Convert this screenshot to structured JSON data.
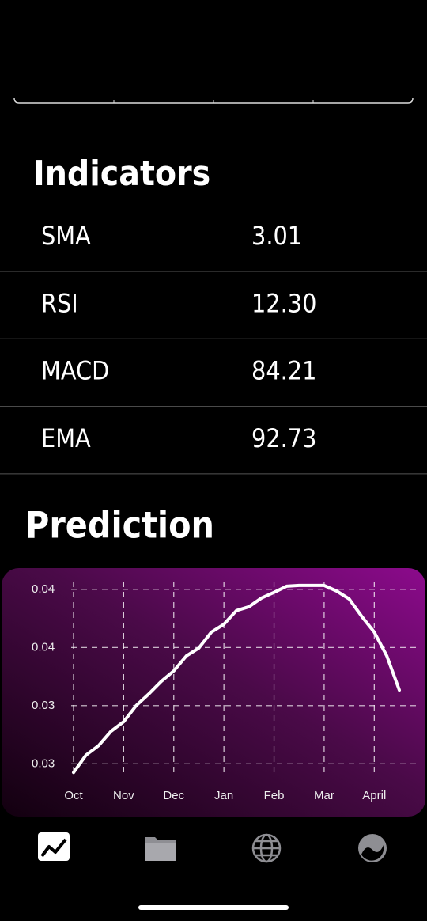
{
  "indicators": {
    "title": "Indicators",
    "rows": [
      {
        "name": "SMA",
        "value": "3.01"
      },
      {
        "name": "RSI",
        "value": "12.30"
      },
      {
        "name": "MACD",
        "value": "84.21"
      },
      {
        "name": "EMA",
        "value": "92.73"
      }
    ]
  },
  "chart_data": {
    "type": "line",
    "title": "Prediction",
    "x": [
      0,
      0.25,
      0.5,
      0.75,
      1,
      1.25,
      1.5,
      1.75,
      2,
      2.25,
      2.5,
      2.75,
      3,
      3.25,
      3.5,
      3.75,
      4,
      4.25,
      4.5,
      4.75,
      5,
      5.25,
      5.5,
      5.75,
      6,
      6.25,
      6.5
    ],
    "series": [
      {
        "color": "#ffffff",
        "values": [
          0.02955,
          0.03045,
          0.03094,
          0.03168,
          0.03217,
          0.033,
          0.0336,
          0.03425,
          0.03479,
          0.03556,
          0.03597,
          0.03679,
          0.0372,
          0.0379,
          0.0381,
          0.03855,
          0.03884,
          0.03916,
          0.0392,
          0.0392,
          0.0392,
          0.03891,
          0.0385,
          0.0376,
          0.03679,
          0.03556,
          0.0338
        ]
      }
    ],
    "xlim": [
      0,
      6.5
    ],
    "xticks": [
      {
        "value": 0,
        "label": "Oct"
      },
      {
        "value": 1,
        "label": "Nov"
      },
      {
        "value": 2,
        "label": "Dec"
      },
      {
        "value": 3,
        "label": "Jan"
      },
      {
        "value": 4,
        "label": "Feb"
      },
      {
        "value": 5,
        "label": "Mar"
      },
      {
        "value": 6,
        "label": "April"
      }
    ],
    "ylim": [
      0.0294,
      0.0394
    ],
    "yticks": [
      0.03,
      {
        "value": 0.033,
        "label": "0.03"
      },
      {
        "value": 0.036,
        "label": "0.04"
      },
      {
        "value": 0.039,
        "label": "0.04"
      }
    ],
    "grid": true
  }
}
